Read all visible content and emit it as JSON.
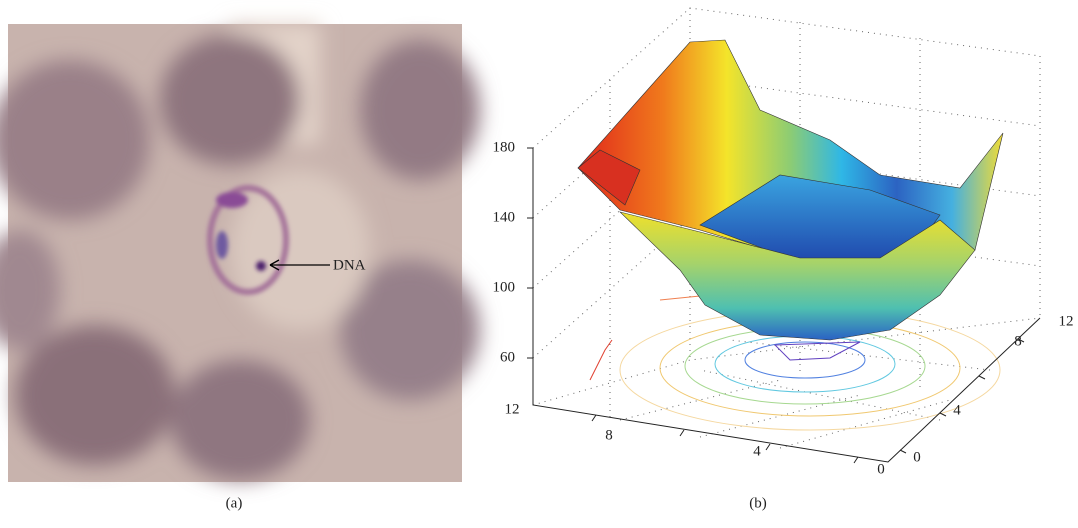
{
  "panel_a": {
    "annotation": "DNA",
    "caption": "(a)"
  },
  "panel_b": {
    "caption": "(b)",
    "zticks": [
      "180",
      "140",
      "100",
      "60"
    ],
    "xticks": [
      "12",
      "8",
      "4",
      "0"
    ],
    "yticks": [
      "0",
      "4",
      "8",
      "12"
    ]
  }
}
